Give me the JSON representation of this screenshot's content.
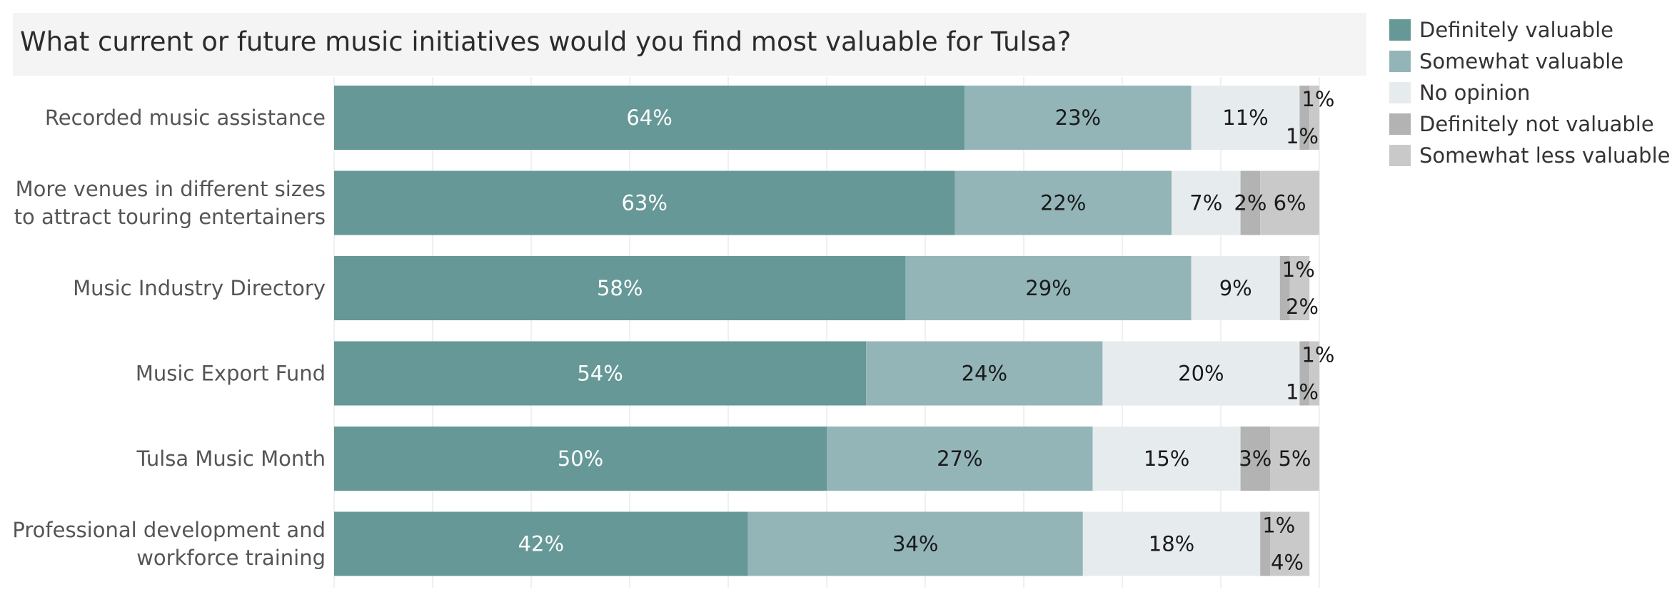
{
  "title": "What current or future music initiatives would you find most valuable for Tulsa?",
  "legend": [
    {
      "name": "Definitely valuable",
      "color": "#659896"
    },
    {
      "name": "Somewhat valuable",
      "color": "#93b5b8"
    },
    {
      "name": "No opinion",
      "color": "#e6ebee"
    },
    {
      "name": "Definitely not valuable",
      "color": "#b3b3b3"
    },
    {
      "name": "Somewhat less valuable",
      "color": "#c9c9c9"
    }
  ],
  "chart_data": {
    "type": "bar",
    "orientation": "horizontal",
    "stacked": true,
    "title": "What current or future music initiatives would you find most valuable for Tulsa?",
    "xlim": [
      0,
      100
    ],
    "grid": "vertical gridlines",
    "legend_position": "top-right",
    "categories": [
      [
        "Recorded music assistance"
      ],
      [
        "More venues in different sizes",
        "to attract touring entertainers"
      ],
      [
        "Music Industry Directory"
      ],
      [
        "Music Export Fund"
      ],
      [
        "Tulsa Music Month"
      ],
      [
        "Professional development and",
        "workforce training"
      ]
    ],
    "series": [
      {
        "name": "Definitely valuable",
        "color": "#659896",
        "label_color": "#ffffff",
        "values": [
          64,
          63,
          58,
          54,
          50,
          42
        ]
      },
      {
        "name": "Somewhat valuable",
        "color": "#93b5b8",
        "label_color": "#1a1a1a",
        "values": [
          23,
          22,
          29,
          24,
          27,
          34
        ]
      },
      {
        "name": "No opinion",
        "color": "#e6ebee",
        "label_color": "#1a1a1a",
        "values": [
          11,
          7,
          9,
          20,
          15,
          18
        ]
      },
      {
        "name": "Definitely not valuable",
        "color": "#b3b3b3",
        "label_color": "#1a1a1a",
        "values": [
          1,
          2,
          1,
          1,
          3,
          1
        ]
      },
      {
        "name": "Somewhat less valuable",
        "color": "#c9c9c9",
        "label_color": "#1a1a1a",
        "values": [
          1,
          6,
          2,
          1,
          5,
          4
        ]
      }
    ],
    "value_labels": [
      [
        "64%",
        "23%",
        "11%",
        "1%",
        "1%"
      ],
      [
        "63%",
        "22%",
        "7%",
        "2%",
        "6%"
      ],
      [
        "58%",
        "29%",
        "9%",
        "1%",
        "2%"
      ],
      [
        "54%",
        "24%",
        "20%",
        "1%",
        "1%"
      ],
      [
        "50%",
        "27%",
        "15%",
        "3%",
        "5%"
      ],
      [
        "42%",
        "34%",
        "18%",
        "1%",
        "4%"
      ]
    ]
  }
}
